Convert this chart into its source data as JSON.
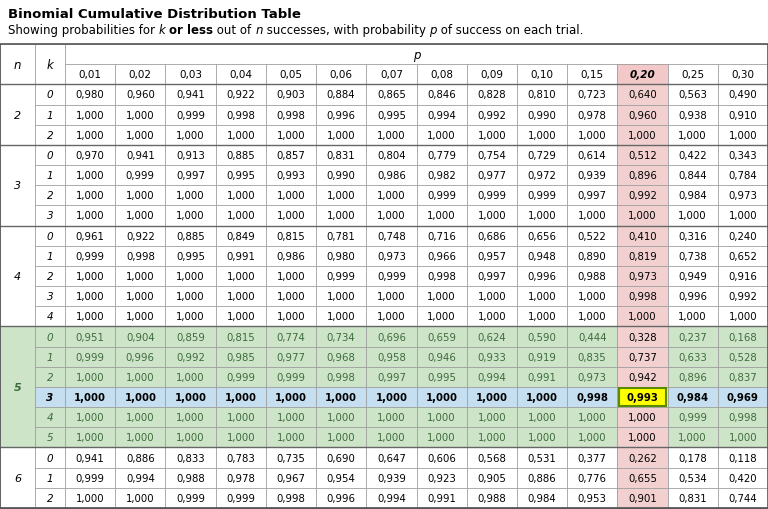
{
  "title": "Binomial Cumulative Distribution Table",
  "col_headers": [
    "0,01",
    "0,02",
    "0,03",
    "0,04",
    "0,05",
    "0,06",
    "0,07",
    "0,08",
    "0,09",
    "0,10",
    "0,15",
    "0,20",
    "0,25",
    "0,30"
  ],
  "rows": [
    {
      "n": 2,
      "k": 0,
      "vals": [
        "0,980",
        "0,960",
        "0,941",
        "0,922",
        "0,903",
        "0,884",
        "0,865",
        "0,846",
        "0,828",
        "0,810",
        "0,723",
        "0,640",
        "0,563",
        "0,490"
      ]
    },
    {
      "n": 2,
      "k": 1,
      "vals": [
        "1,000",
        "1,000",
        "0,999",
        "0,998",
        "0,998",
        "0,996",
        "0,995",
        "0,994",
        "0,992",
        "0,990",
        "0,978",
        "0,960",
        "0,938",
        "0,910"
      ]
    },
    {
      "n": 2,
      "k": 2,
      "vals": [
        "1,000",
        "1,000",
        "1,000",
        "1,000",
        "1,000",
        "1,000",
        "1,000",
        "1,000",
        "1,000",
        "1,000",
        "1,000",
        "1,000",
        "1,000",
        "1,000"
      ]
    },
    {
      "n": 3,
      "k": 0,
      "vals": [
        "0,970",
        "0,941",
        "0,913",
        "0,885",
        "0,857",
        "0,831",
        "0,804",
        "0,779",
        "0,754",
        "0,729",
        "0,614",
        "0,512",
        "0,422",
        "0,343"
      ]
    },
    {
      "n": 3,
      "k": 1,
      "vals": [
        "1,000",
        "0,999",
        "0,997",
        "0,995",
        "0,993",
        "0,990",
        "0,986",
        "0,982",
        "0,977",
        "0,972",
        "0,939",
        "0,896",
        "0,844",
        "0,784"
      ]
    },
    {
      "n": 3,
      "k": 2,
      "vals": [
        "1,000",
        "1,000",
        "1,000",
        "1,000",
        "1,000",
        "1,000",
        "1,000",
        "0,999",
        "0,999",
        "0,999",
        "0,997",
        "0,992",
        "0,984",
        "0,973"
      ]
    },
    {
      "n": 3,
      "k": 3,
      "vals": [
        "1,000",
        "1,000",
        "1,000",
        "1,000",
        "1,000",
        "1,000",
        "1,000",
        "1,000",
        "1,000",
        "1,000",
        "1,000",
        "1,000",
        "1,000",
        "1,000"
      ]
    },
    {
      "n": 4,
      "k": 0,
      "vals": [
        "0,961",
        "0,922",
        "0,885",
        "0,849",
        "0,815",
        "0,781",
        "0,748",
        "0,716",
        "0,686",
        "0,656",
        "0,522",
        "0,410",
        "0,316",
        "0,240"
      ]
    },
    {
      "n": 4,
      "k": 1,
      "vals": [
        "0,999",
        "0,998",
        "0,995",
        "0,991",
        "0,986",
        "0,980",
        "0,973",
        "0,966",
        "0,957",
        "0,948",
        "0,890",
        "0,819",
        "0,738",
        "0,652"
      ]
    },
    {
      "n": 4,
      "k": 2,
      "vals": [
        "1,000",
        "1,000",
        "1,000",
        "1,000",
        "1,000",
        "0,999",
        "0,999",
        "0,998",
        "0,997",
        "0,996",
        "0,988",
        "0,973",
        "0,949",
        "0,916"
      ]
    },
    {
      "n": 4,
      "k": 3,
      "vals": [
        "1,000",
        "1,000",
        "1,000",
        "1,000",
        "1,000",
        "1,000",
        "1,000",
        "1,000",
        "1,000",
        "1,000",
        "1,000",
        "0,998",
        "0,996",
        "0,992"
      ]
    },
    {
      "n": 4,
      "k": 4,
      "vals": [
        "1,000",
        "1,000",
        "1,000",
        "1,000",
        "1,000",
        "1,000",
        "1,000",
        "1,000",
        "1,000",
        "1,000",
        "1,000",
        "1,000",
        "1,000",
        "1,000"
      ]
    },
    {
      "n": 5,
      "k": 0,
      "vals": [
        "0,951",
        "0,904",
        "0,859",
        "0,815",
        "0,774",
        "0,734",
        "0,696",
        "0,659",
        "0,624",
        "0,590",
        "0,444",
        "0,328",
        "0,237",
        "0,168"
      ]
    },
    {
      "n": 5,
      "k": 1,
      "vals": [
        "0,999",
        "0,996",
        "0,992",
        "0,985",
        "0,977",
        "0,968",
        "0,958",
        "0,946",
        "0,933",
        "0,919",
        "0,835",
        "0,737",
        "0,633",
        "0,528"
      ]
    },
    {
      "n": 5,
      "k": 2,
      "vals": [
        "1,000",
        "1,000",
        "1,000",
        "0,999",
        "0,999",
        "0,998",
        "0,997",
        "0,995",
        "0,994",
        "0,991",
        "0,973",
        "0,942",
        "0,896",
        "0,837"
      ]
    },
    {
      "n": 5,
      "k": 3,
      "vals": [
        "1,000",
        "1,000",
        "1,000",
        "1,000",
        "1,000",
        "1,000",
        "1,000",
        "1,000",
        "1,000",
        "1,000",
        "0,998",
        "0,993",
        "0,984",
        "0,969"
      ]
    },
    {
      "n": 5,
      "k": 4,
      "vals": [
        "1,000",
        "1,000",
        "1,000",
        "1,000",
        "1,000",
        "1,000",
        "1,000",
        "1,000",
        "1,000",
        "1,000",
        "1,000",
        "1,000",
        "0,999",
        "0,998"
      ]
    },
    {
      "n": 5,
      "k": 5,
      "vals": [
        "1,000",
        "1,000",
        "1,000",
        "1,000",
        "1,000",
        "1,000",
        "1,000",
        "1,000",
        "1,000",
        "1,000",
        "1,000",
        "1,000",
        "1,000",
        "1,000"
      ]
    },
    {
      "n": 6,
      "k": 0,
      "vals": [
        "0,941",
        "0,886",
        "0,833",
        "0,783",
        "0,735",
        "0,690",
        "0,647",
        "0,606",
        "0,568",
        "0,531",
        "0,377",
        "0,262",
        "0,178",
        "0,118"
      ]
    },
    {
      "n": 6,
      "k": 1,
      "vals": [
        "0,999",
        "0,994",
        "0,988",
        "0,978",
        "0,967",
        "0,954",
        "0,939",
        "0,923",
        "0,905",
        "0,886",
        "0,776",
        "0,655",
        "0,534",
        "0,420"
      ]
    },
    {
      "n": 6,
      "k": 2,
      "vals": [
        "1,000",
        "1,000",
        "0,999",
        "0,999",
        "0,998",
        "0,996",
        "0,994",
        "0,991",
        "0,988",
        "0,984",
        "0,953",
        "0,901",
        "0,831",
        "0,744"
      ]
    }
  ],
  "n_groups": {
    "2": [
      0,
      1,
      2
    ],
    "3": [
      3,
      4,
      5,
      6
    ],
    "4": [
      7,
      8,
      9,
      10,
      11
    ],
    "5": [
      12,
      13,
      14,
      15,
      16,
      17
    ],
    "6": [
      18,
      19,
      20
    ]
  },
  "highlight_p_col_idx": 11,
  "highlight_row_idx": 15,
  "highlight_cell_row": 15,
  "highlight_cell_col": 11,
  "n5_bg": "#cde4c9",
  "n5_text_color": "#3d6b3a",
  "highlight_row_bg": "#c5dff0",
  "highlight_col_bg": "#f2d0d0",
  "highlight_col_header_bg": "#f2c8c8",
  "highlight_cell_bg": "#ffff00",
  "highlight_cell_border": "#5a8a00"
}
